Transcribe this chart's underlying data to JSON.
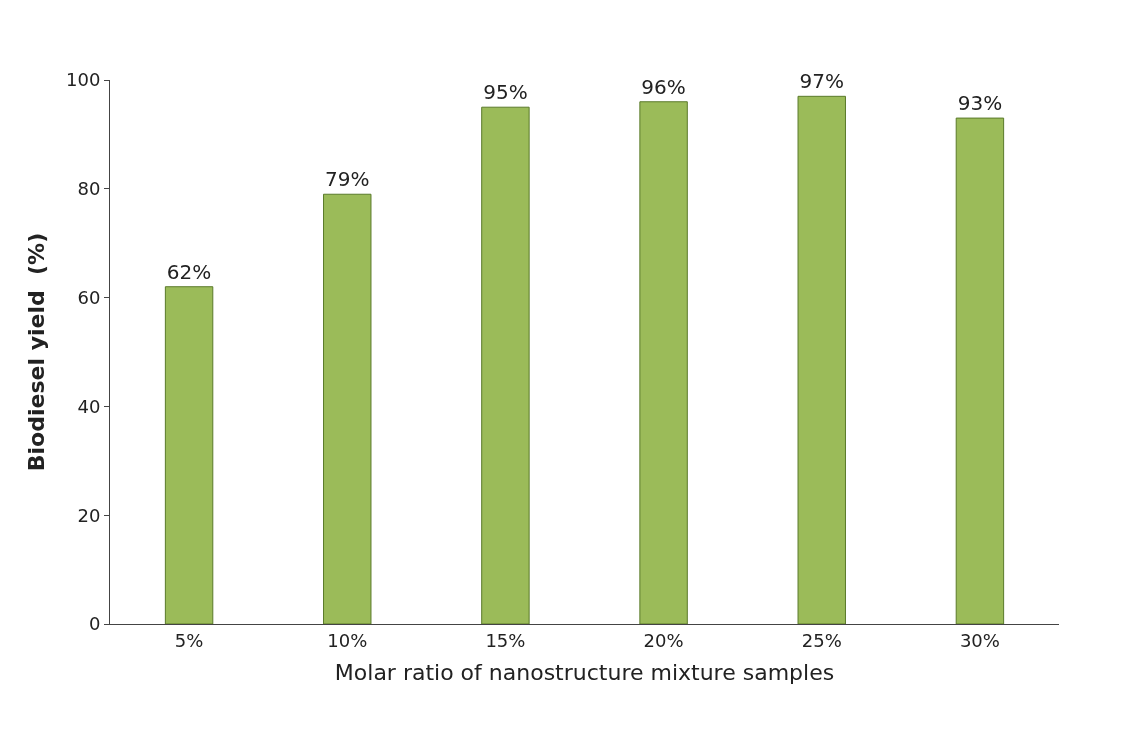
{
  "chart_data": {
    "type": "bar",
    "xlabel": "Molar ratio of nanostructure mixture samples",
    "ylabel": "Biodiesel yield  (%)",
    "categories": [
      "5%",
      "10%",
      "15%",
      "20%",
      "25%",
      "30%"
    ],
    "values": [
      62,
      79,
      95,
      96,
      97,
      93
    ],
    "value_labels": [
      "62%",
      "79%",
      "95%",
      "96%",
      "97%",
      "93%"
    ],
    "color": "#9bbb59",
    "ylim": [
      0,
      100
    ],
    "yticks": [
      0,
      20,
      40,
      60,
      80,
      100
    ]
  }
}
